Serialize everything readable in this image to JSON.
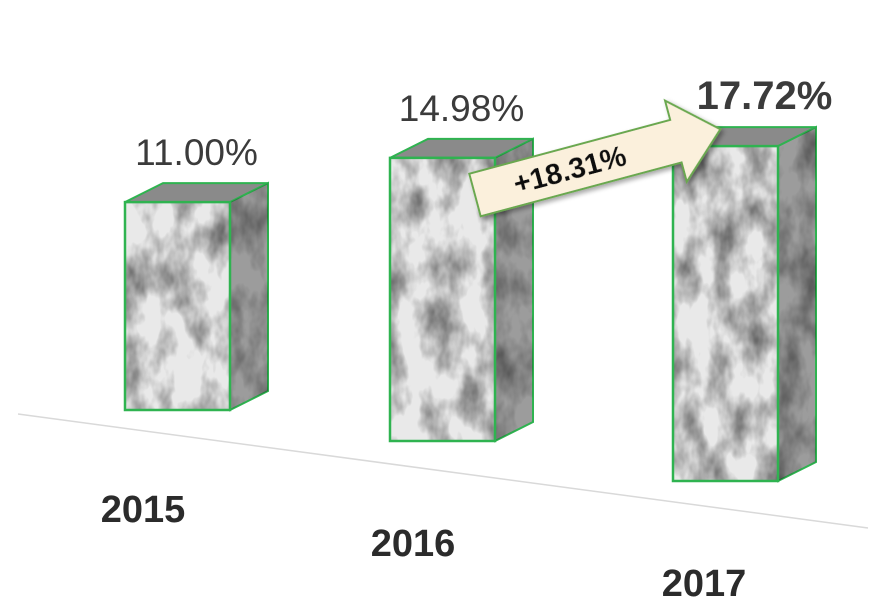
{
  "chart_data": {
    "type": "bar",
    "categories": [
      "2015",
      "2016",
      "2017"
    ],
    "values": [
      11.0,
      14.98,
      17.72
    ],
    "value_labels": [
      "11.00%",
      "14.98%",
      "17.72%"
    ],
    "annotation": "+18.31%",
    "title": "",
    "xlabel": "",
    "ylabel": "",
    "grid": false,
    "legend": "none"
  },
  "colors": {
    "bar_outline": "#2fb350",
    "bar_front": "#e9e9e9",
    "bar_side": "#9c9c9c",
    "bar_top": "#8a8a8a",
    "arrow_fill": "#fbf0dc",
    "arrow_stroke": "#6aa84f",
    "baseline": "#d9d9d9"
  }
}
